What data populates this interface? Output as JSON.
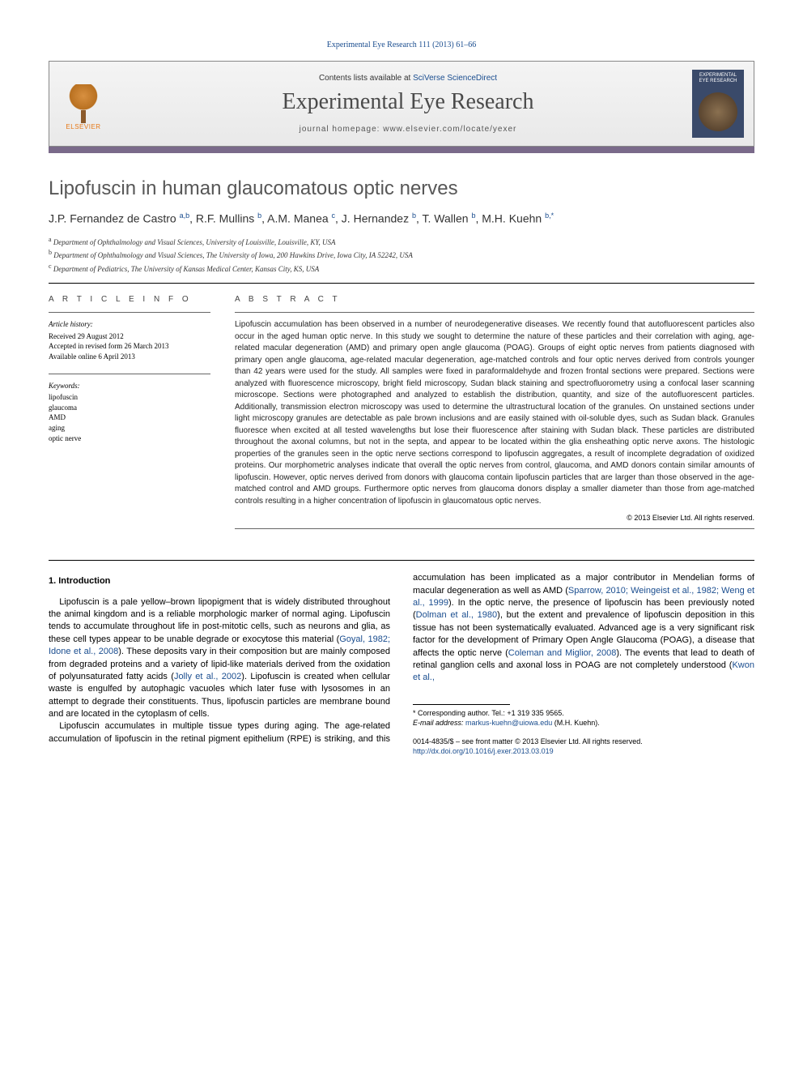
{
  "header": {
    "citation": "Experimental Eye Research 111 (2013) 61–66"
  },
  "banner": {
    "publisher_name": "ELSEVIER",
    "contents_prefix": "Contents lists available at ",
    "contents_link": "SciVerse ScienceDirect",
    "journal_name": "Experimental Eye Research",
    "homepage_prefix": "journal homepage: ",
    "homepage_url": "www.elsevier.com/locate/yexer",
    "cover_line1": "EXPERIMENTAL",
    "cover_line2": "EYE RESEARCH"
  },
  "article": {
    "title": "Lipofuscin in human glaucomatous optic nerves",
    "authors_html": "J.P. Fernandez de Castro <sup>a,b</sup>, R.F. Mullins <sup>b</sup>, A.M. Manea <sup>c</sup>, J. Hernandez <sup>b</sup>, T. Wallen <sup>b</sup>, M.H. Kuehn <sup>b,*</sup>",
    "affiliations": [
      {
        "sup": "a",
        "text": "Department of Ophthalmology and Visual Sciences, University of Louisville, Louisville, KY, USA"
      },
      {
        "sup": "b",
        "text": "Department of Ophthalmology and Visual Sciences, The University of Iowa, 200 Hawkins Drive, Iowa City, IA 52242, USA"
      },
      {
        "sup": "c",
        "text": "Department of Pediatrics, The University of Kansas Medical Center, Kansas City, KS, USA"
      }
    ]
  },
  "info": {
    "heading": "A R T I C L E   I N F O",
    "history_label": "Article history:",
    "history": [
      "Received 29 August 2012",
      "Accepted in revised form 26 March 2013",
      "Available online 6 April 2013"
    ],
    "keywords_label": "Keywords:",
    "keywords": [
      "lipofuscin",
      "glaucoma",
      "AMD",
      "aging",
      "optic nerve"
    ]
  },
  "abstract": {
    "heading": "A B S T R A C T",
    "text": "Lipofuscin accumulation has been observed in a number of neurodegenerative diseases. We recently found that autofluorescent particles also occur in the aged human optic nerve. In this study we sought to determine the nature of these particles and their correlation with aging, age-related macular degeneration (AMD) and primary open angle glaucoma (POAG). Groups of eight optic nerves from patients diagnosed with primary open angle glaucoma, age-related macular degeneration, age-matched controls and four optic nerves derived from controls younger than 42 years were used for the study. All samples were fixed in paraformaldehyde and frozen frontal sections were prepared. Sections were analyzed with fluorescence microscopy, bright field microscopy, Sudan black staining and spectrofluorometry using a confocal laser scanning microscope. Sections were photographed and analyzed to establish the distribution, quantity, and size of the autofluorescent particles. Additionally, transmission electron microscopy was used to determine the ultrastructural location of the granules. On unstained sections under light microscopy granules are detectable as pale brown inclusions and are easily stained with oil-soluble dyes, such as Sudan black. Granules fluoresce when excited at all tested wavelengths but lose their fluorescence after staining with Sudan black. These particles are distributed throughout the axonal columns, but not in the septa, and appear to be located within the glia ensheathing optic nerve axons. The histologic properties of the granules seen in the optic nerve sections correspond to lipofuscin aggregates, a result of incomplete degradation of oxidized proteins. Our morphometric analyses indicate that overall the optic nerves from control, glaucoma, and AMD donors contain similar amounts of lipofuscin. However, optic nerves derived from donors with glaucoma contain lipofuscin particles that are larger than those observed in the age-matched control and AMD groups. Furthermore optic nerves from glaucoma donors display a smaller diameter than those from age-matched controls resulting in a higher concentration of lipofuscin in glaucomatous optic nerves.",
    "copyright": "© 2013 Elsevier Ltd. All rights reserved."
  },
  "body": {
    "section_number": "1.",
    "section_title": "Introduction",
    "p1_pre": "Lipofuscin is a pale yellow–brown lipopigment that is widely distributed throughout the animal kingdom and is a reliable morphologic marker of normal aging. Lipofuscin tends to accumulate throughout life in post-mitotic cells, such as neurons and glia, as these cell types appear to be unable degrade or exocytose this material (",
    "p1_cite1": "Goyal, 1982; Idone et al., 2008",
    "p1_mid": "). These deposits vary in their composition but are mainly composed from degraded proteins and a variety of lipid-like materials derived from the oxidation of polyunsaturated fatty acids (",
    "p1_cite2": "Jolly et al., 2002",
    "p1_post": "). Lipofuscin is created when cellular waste is engulfed by autophagic vacuoles which later fuse with lysosomes in an attempt to degrade their constituents. Thus, lipofuscin particles are membrane bound and are located in the cytoplasm of cells.",
    "p2_pre": "Lipofuscin accumulates in multiple tissue types during aging. The age-related accumulation of lipofuscin in the retinal pigment epithelium (RPE) is striking, and this accumulation has been implicated as a major contributor in Mendelian forms of macular degeneration as well as AMD (",
    "p2_cite1": "Sparrow, 2010; Weingeist et al., 1982; Weng et al., 1999",
    "p2_mid1": "). In the optic nerve, the presence of lipofuscin has been previously noted (",
    "p2_cite2": "Dolman et al., 1980",
    "p2_mid2": "), but the extent and prevalence of lipofuscin deposition in this tissue has not been systematically evaluated. Advanced age is a very significant risk factor for the development of Primary Open Angle Glaucoma (POAG), a disease that affects the optic nerve (",
    "p2_cite3": "Coleman and Miglior, 2008",
    "p2_mid3": "). The events that lead to death of retinal ganglion cells and axonal loss in POAG are not completely understood (",
    "p2_cite4": "Kwon et al.,"
  },
  "footer": {
    "corresponding": "* Corresponding author. Tel.: +1 319 335 9565.",
    "email_label": "E-mail address: ",
    "email": "markus-kuehn@uiowa.edu",
    "email_person": " (M.H. Kuehn).",
    "issn_line": "0014-4835/$ – see front matter © 2013 Elsevier Ltd. All rights reserved.",
    "doi": "http://dx.doi.org/10.1016/j.exer.2013.03.019"
  }
}
